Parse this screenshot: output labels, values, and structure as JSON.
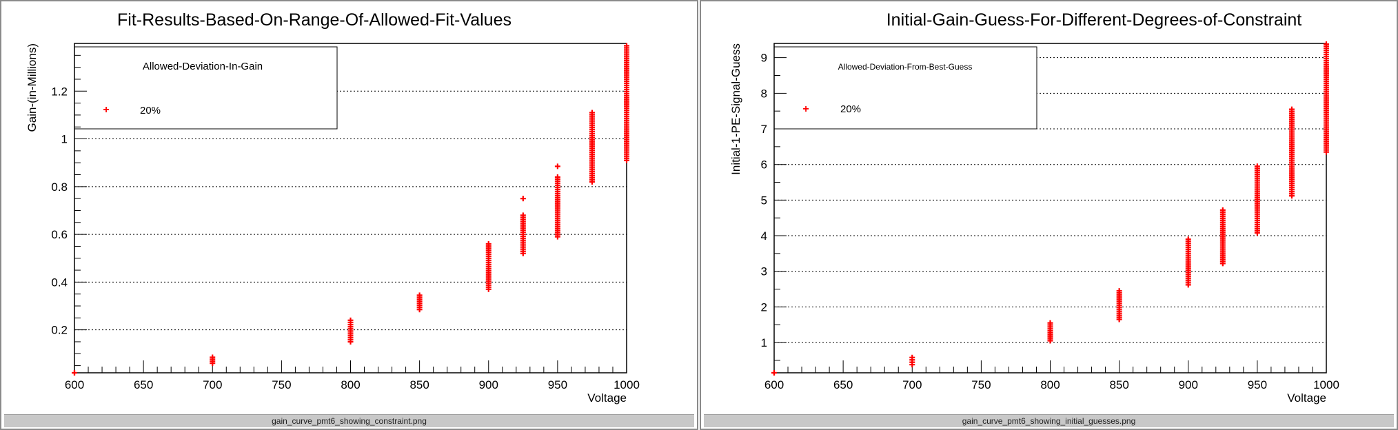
{
  "chart_data": [
    {
      "type": "scatter",
      "title": "Fit-Results-Based-On-Range-Of-Allowed-Fit-Values",
      "xlabel": "Voltage",
      "ylabel": "Gain-(in-Millions)",
      "xlim": [
        600,
        1000
      ],
      "ylim": [
        0.02,
        1.4
      ],
      "x_ticks": [
        "600",
        "650",
        "700",
        "750",
        "800",
        "850",
        "900",
        "950",
        "1000"
      ],
      "y_ticks": [
        "0.2",
        "0.4",
        "0.6",
        "0.8",
        "1",
        "1.2"
      ],
      "grid": "horizontal-dotted",
      "legend_position": "top-left",
      "legend_title": "Allowed-Deviation-In-Gain",
      "color": "#ff0000",
      "series": [
        {
          "name": "20%",
          "groups": [
            {
              "x": 600,
              "ymin": 0.02,
              "ymax": 0.02
            },
            {
              "x": 700,
              "ymin": 0.06,
              "ymax": 0.085
            },
            {
              "x": 800,
              "ymin": 0.15,
              "ymax": 0.24
            },
            {
              "x": 850,
              "ymin": 0.285,
              "ymax": 0.345
            },
            {
              "x": 900,
              "ymin": 0.37,
              "ymax": 0.56
            },
            {
              "x": 925,
              "ymin": 0.52,
              "ymax": 0.68,
              "outliers": [
                0.75
              ]
            },
            {
              "x": 950,
              "ymin": 0.59,
              "ymax": 0.84,
              "outliers": [
                0.885
              ]
            },
            {
              "x": 975,
              "ymin": 0.82,
              "ymax": 1.11
            },
            {
              "x": 1000,
              "ymin": 0.91,
              "ymax": 1.39
            }
          ]
        }
      ]
    },
    {
      "type": "scatter",
      "title": "Initial-Gain-Guess-For-Different-Degrees-of-Constraint",
      "xlabel": "Voltage",
      "ylabel": "Initial-1-PE-Signal-Guess",
      "xlim": [
        600,
        1000
      ],
      "ylim": [
        0.15,
        9.4
      ],
      "x_ticks": [
        "600",
        "650",
        "700",
        "750",
        "800",
        "850",
        "900",
        "950",
        "1000"
      ],
      "y_ticks": [
        "1",
        "2",
        "3",
        "4",
        "5",
        "6",
        "7",
        "8",
        "9"
      ],
      "grid": "horizontal-dotted",
      "legend_position": "top-left",
      "legend_title": "Allowed-Deviation-From-Best-Guess",
      "color": "#ff0000",
      "series": [
        {
          "name": "20%",
          "groups": [
            {
              "x": 600,
              "ymin": 0.15,
              "ymax": 0.15
            },
            {
              "x": 700,
              "ymin": 0.38,
              "ymax": 0.58
            },
            {
              "x": 800,
              "ymin": 1.05,
              "ymax": 1.55
            },
            {
              "x": 850,
              "ymin": 1.65,
              "ymax": 2.45
            },
            {
              "x": 900,
              "ymin": 2.62,
              "ymax": 3.9
            },
            {
              "x": 925,
              "ymin": 3.22,
              "ymax": 4.72
            },
            {
              "x": 950,
              "ymin": 4.08,
              "ymax": 5.95
            },
            {
              "x": 975,
              "ymin": 5.12,
              "ymax": 7.55
            },
            {
              "x": 1000,
              "ymin": 6.35,
              "ymax": 9.38
            }
          ]
        }
      ]
    }
  ],
  "captions": [
    "gain_curve_pmt6_showing_constraint.png",
    "gain_curve_pmt6_showing_initial_guesses.png"
  ]
}
